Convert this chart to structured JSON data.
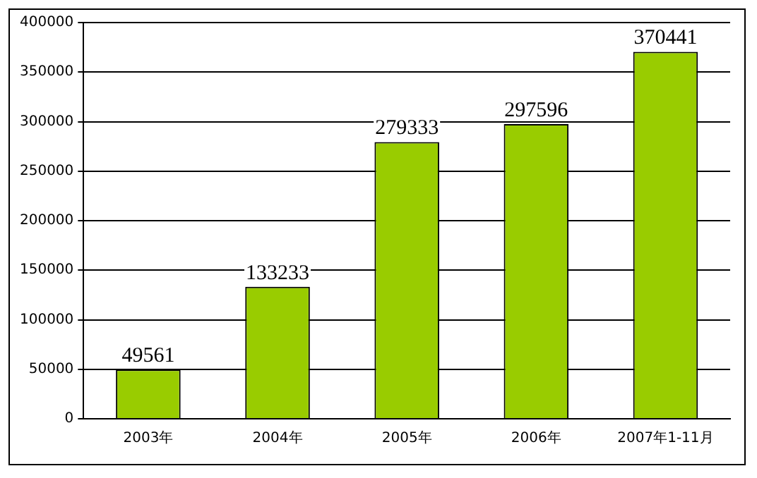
{
  "chart_data": {
    "type": "bar",
    "categories": [
      "2003年",
      "2004年",
      "2005年",
      "2006年",
      "2007年1-11月"
    ],
    "values": [
      49561,
      133233,
      279333,
      297596,
      370441
    ],
    "color": "#99cc00",
    "ylim": [
      0,
      400000
    ],
    "yticks": [
      0,
      50000,
      100000,
      150000,
      200000,
      250000,
      300000,
      350000,
      400000
    ],
    "grid": "y",
    "data_labels": true
  }
}
